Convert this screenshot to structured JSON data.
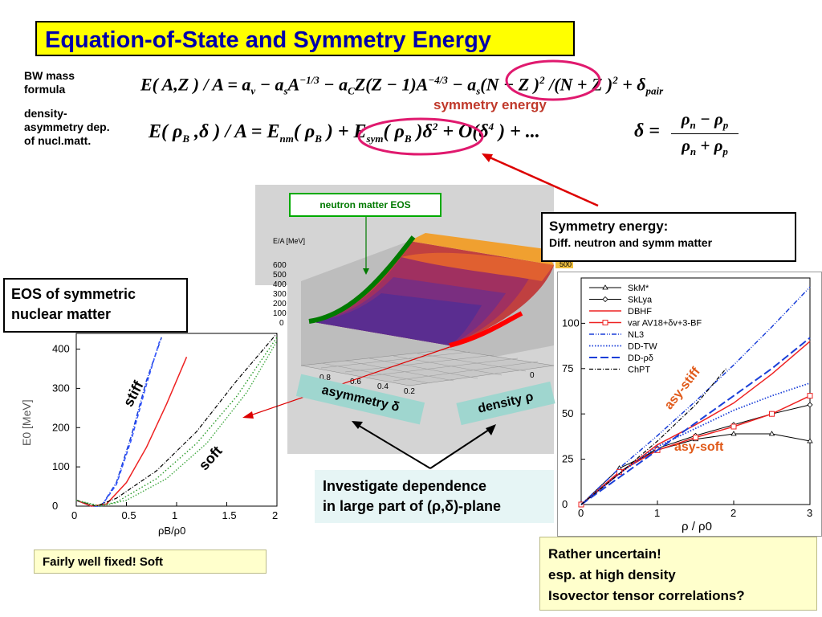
{
  "title": "Equation-of-State and Symmetry Energy",
  "labels": {
    "bw_mass": "BW mass formula",
    "density_asym": "density-asymmetry dep. of nucl.matt.",
    "symmetry_energy": "symmetry energy",
    "neutron_matter_eos": "neutron matter EOS",
    "sym_energy_box_line1": "Symmetry energy:",
    "sym_energy_box_line2": "Diff. neutron and symm matter",
    "eos_symmetric_line1": "EOS of symmetric",
    "eos_symmetric_line2": "nuclear matter",
    "asymmetry": "asymmetry δ",
    "density": "density ρ",
    "investigate_line1": "Investigate dependence",
    "investigate_line2": "in large part of (ρ,δ)-plane",
    "fairly_well": "Fairly well fixed! Soft",
    "uncertain_line1": "Rather uncertain!",
    "uncertain_line2": "esp. at high density",
    "uncertain_line3": "Isovector tensor correlations?",
    "stiff": "stiff",
    "soft": "soft",
    "asy_stiff": "asy-stiff",
    "asy_soft": "asy-soft"
  },
  "colors": {
    "title_bg": "#ffff00",
    "title_text": "#0000aa",
    "highlight_oval": "#e0196e",
    "arrow_red": "#dd0000",
    "neutron_green": "#007a00"
  },
  "chart_data": [
    {
      "type": "line",
      "id": "eos_symmetric",
      "xlabel": "ρB/ρ0",
      "ylabel": "E0 [MeV]",
      "xlim": [
        0,
        2
      ],
      "ylim": [
        0,
        440
      ],
      "xticks": [
        "0",
        "0.5",
        "1",
        "1.5",
        "2"
      ],
      "yticks": [
        "0",
        "100",
        "200",
        "300",
        "400"
      ],
      "series": [
        {
          "style": "stiff-blue-dashdot",
          "x": [
            0,
            0.15,
            0.25,
            0.4,
            0.55,
            0.7,
            0.85
          ],
          "y": [
            15,
            0,
            0,
            60,
            180,
            320,
            430
          ]
        },
        {
          "style": "stiff-blue-dash",
          "x": [
            0,
            0.15,
            0.25,
            0.4,
            0.55,
            0.7,
            0.83
          ],
          "y": [
            15,
            0,
            0,
            55,
            170,
            310,
            420
          ]
        },
        {
          "style": "red-solid",
          "x": [
            0,
            0.15,
            0.3,
            0.5,
            0.7,
            0.9,
            1.1
          ],
          "y": [
            15,
            0,
            5,
            60,
            150,
            260,
            380
          ]
        },
        {
          "style": "black-dashdot",
          "x": [
            0,
            0.2,
            0.4,
            0.8,
            1.2,
            1.6,
            2.0
          ],
          "y": [
            15,
            0,
            20,
            90,
            190,
            320,
            440
          ]
        },
        {
          "style": "green-dot-1",
          "x": [
            0,
            0.2,
            0.4,
            0.8,
            1.2,
            1.6,
            2.0
          ],
          "y": [
            15,
            0,
            10,
            70,
            160,
            280,
            430
          ]
        },
        {
          "style": "green-dot-2",
          "x": [
            0,
            0.25,
            0.5,
            0.9,
            1.3,
            1.7,
            2.0
          ],
          "y": [
            15,
            0,
            15,
            70,
            160,
            290,
            420
          ]
        }
      ]
    },
    {
      "type": "area",
      "id": "ea_surface",
      "zlabel": "E/A [MeV]",
      "zticks": [
        "600",
        "500",
        "400",
        "300",
        "200",
        "100",
        "0"
      ],
      "asym_ticks": [
        "0.8",
        "0.6",
        "0.4",
        "0.2"
      ],
      "density_ticks": [
        "0"
      ],
      "colorbar_label": "500"
    },
    {
      "type": "line",
      "id": "symmetry_energy_models",
      "xlabel": "ρ / ρ0",
      "xlim": [
        0,
        3
      ],
      "ylim": [
        0,
        125
      ],
      "xticks": [
        "0",
        "1",
        "2",
        "3"
      ],
      "yticks": [
        "0",
        "25",
        "50",
        "75",
        "100"
      ],
      "series": [
        {
          "name": "SkM*",
          "style": "black-open-triangle",
          "x": [
            0,
            0.5,
            1,
            1.5,
            2,
            2.5,
            3
          ],
          "y": [
            0,
            20,
            30,
            36,
            39,
            39,
            35
          ]
        },
        {
          "name": "SkLya",
          "style": "black-open-diamond",
          "x": [
            0,
            0.5,
            1,
            1.5,
            2,
            2.5,
            3
          ],
          "y": [
            0,
            18,
            31,
            38,
            44,
            50,
            55
          ]
        },
        {
          "name": "DBHF",
          "style": "red-solid",
          "x": [
            0,
            0.5,
            1,
            1.5,
            2,
            2.5,
            3
          ],
          "y": [
            0,
            17,
            33,
            44,
            56,
            72,
            90
          ]
        },
        {
          "name": "var AV18+δv+3-BF",
          "style": "red-square",
          "x": [
            0,
            0.5,
            1,
            1.5,
            2,
            2.5,
            3
          ],
          "y": [
            0,
            18,
            30,
            37,
            43,
            50,
            60
          ]
        },
        {
          "name": "NL3",
          "style": "blue-dashdotdot",
          "x": [
            0,
            0.5,
            1,
            1.5,
            2,
            2.5,
            3
          ],
          "y": [
            0,
            20,
            38,
            57,
            77,
            98,
            120
          ]
        },
        {
          "name": "DD-TW",
          "style": "blue-dotted",
          "x": [
            0,
            0.5,
            1,
            1.5,
            2,
            2.5,
            3
          ],
          "y": [
            0,
            17,
            32,
            42,
            52,
            60,
            67
          ]
        },
        {
          "name": "DD-ρδ",
          "style": "blue-dashed",
          "x": [
            0,
            0.5,
            1,
            1.5,
            2,
            2.5,
            3
          ],
          "y": [
            0,
            15,
            30,
            45,
            60,
            75,
            92
          ]
        },
        {
          "name": "ChPT",
          "style": "black-dashdot",
          "x": [
            0,
            0.5,
            1,
            1.5,
            1.9
          ],
          "y": [
            0,
            17,
            35,
            55,
            75
          ]
        }
      ]
    }
  ]
}
